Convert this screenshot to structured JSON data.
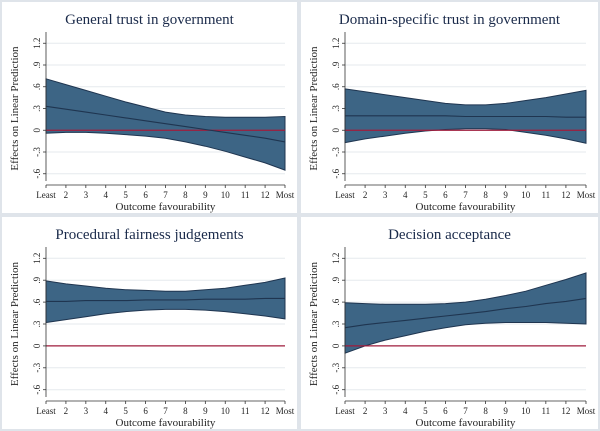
{
  "colors": {
    "band": "#3d6585",
    "line": "#1f3550",
    "zero_line": "#a01c3c",
    "grid": "#e6eaee",
    "background": "#dfe4ea"
  },
  "chart_data": [
    {
      "type": "area",
      "title": "General trust in government",
      "xlabel": "Outcome favourability",
      "ylabel": "Effects on Linear Prediction",
      "categories": [
        "Least",
        "2",
        "3",
        "4",
        "5",
        "6",
        "7",
        "8",
        "9",
        "10",
        "11",
        "12",
        "Most"
      ],
      "yticks": [
        "-.6",
        "-.3",
        "0",
        ".3",
        ".6",
        ".9",
        "1.2"
      ],
      "ylim": [
        -0.7,
        1.3
      ],
      "reference_line": 0,
      "series": [
        {
          "name": "estimate",
          "values": [
            0.33,
            0.29,
            0.25,
            0.21,
            0.17,
            0.13,
            0.09,
            0.05,
            0.01,
            -0.03,
            -0.07,
            -0.11,
            -0.16
          ]
        },
        {
          "name": "upper",
          "values": [
            0.71,
            0.63,
            0.55,
            0.47,
            0.39,
            0.32,
            0.25,
            0.21,
            0.19,
            0.18,
            0.18,
            0.18,
            0.19
          ]
        },
        {
          "name": "lower",
          "values": [
            -0.04,
            -0.03,
            -0.03,
            -0.04,
            -0.06,
            -0.08,
            -0.11,
            -0.16,
            -0.22,
            -0.29,
            -0.37,
            -0.45,
            -0.55
          ]
        }
      ]
    },
    {
      "type": "area",
      "title": "Domain-specific trust in government",
      "xlabel": "Outcome favourability",
      "ylabel": "Effects on Linear Prediction",
      "categories": [
        "Least",
        "2",
        "3",
        "4",
        "5",
        "6",
        "7",
        "8",
        "9",
        "10",
        "11",
        "12",
        "Most"
      ],
      "yticks": [
        "-.6",
        "-.3",
        "0",
        ".3",
        ".6",
        ".9",
        "1.2"
      ],
      "ylim": [
        -0.7,
        1.3
      ],
      "reference_line": 0,
      "series": [
        {
          "name": "estimate",
          "values": [
            0.2,
            0.2,
            0.2,
            0.2,
            0.2,
            0.2,
            0.19,
            0.19,
            0.19,
            0.19,
            0.19,
            0.18,
            0.18
          ]
        },
        {
          "name": "upper",
          "values": [
            0.57,
            0.53,
            0.49,
            0.45,
            0.41,
            0.37,
            0.35,
            0.35,
            0.37,
            0.41,
            0.45,
            0.5,
            0.55
          ]
        },
        {
          "name": "lower",
          "values": [
            -0.17,
            -0.12,
            -0.08,
            -0.04,
            -0.01,
            0.01,
            0.02,
            0.02,
            0.01,
            -0.03,
            -0.07,
            -0.12,
            -0.18
          ]
        }
      ]
    },
    {
      "type": "area",
      "title": "Procedural fairness judgements",
      "xlabel": "Outcome favourability",
      "ylabel": "Effects on Linear Prediction",
      "categories": [
        "Least",
        "2",
        "3",
        "4",
        "5",
        "6",
        "7",
        "8",
        "9",
        "10",
        "11",
        "12",
        "Most"
      ],
      "yticks": [
        "-.6",
        "-.3",
        "0",
        ".3",
        ".6",
        ".9",
        "1.2"
      ],
      "ylim": [
        -0.7,
        1.3
      ],
      "reference_line": 0,
      "series": [
        {
          "name": "estimate",
          "values": [
            0.61,
            0.61,
            0.62,
            0.62,
            0.62,
            0.63,
            0.63,
            0.63,
            0.64,
            0.64,
            0.64,
            0.65,
            0.65
          ]
        },
        {
          "name": "upper",
          "values": [
            0.89,
            0.85,
            0.82,
            0.79,
            0.77,
            0.76,
            0.75,
            0.75,
            0.77,
            0.79,
            0.83,
            0.87,
            0.93
          ]
        },
        {
          "name": "lower",
          "values": [
            0.32,
            0.36,
            0.4,
            0.44,
            0.47,
            0.49,
            0.5,
            0.5,
            0.49,
            0.47,
            0.44,
            0.41,
            0.37
          ]
        }
      ]
    },
    {
      "type": "area",
      "title": "Decision acceptance",
      "xlabel": "Outcome favourability",
      "ylabel": "Effects on Linear Prediction",
      "categories": [
        "Least",
        "2",
        "3",
        "4",
        "5",
        "6",
        "7",
        "8",
        "9",
        "10",
        "11",
        "12",
        "Most"
      ],
      "yticks": [
        "-.6",
        "-.3",
        "0",
        ".3",
        ".6",
        ".9",
        "1.2"
      ],
      "ylim": [
        -0.7,
        1.3
      ],
      "reference_line": 0,
      "series": [
        {
          "name": "estimate",
          "values": [
            0.25,
            0.29,
            0.32,
            0.35,
            0.38,
            0.41,
            0.44,
            0.47,
            0.51,
            0.54,
            0.58,
            0.61,
            0.65
          ]
        },
        {
          "name": "upper",
          "values": [
            0.59,
            0.58,
            0.57,
            0.57,
            0.57,
            0.58,
            0.6,
            0.64,
            0.69,
            0.75,
            0.83,
            0.91,
            1.0
          ]
        },
        {
          "name": "lower",
          "values": [
            -0.1,
            0.0,
            0.08,
            0.14,
            0.2,
            0.25,
            0.29,
            0.31,
            0.32,
            0.32,
            0.32,
            0.31,
            0.3
          ]
        }
      ]
    }
  ]
}
